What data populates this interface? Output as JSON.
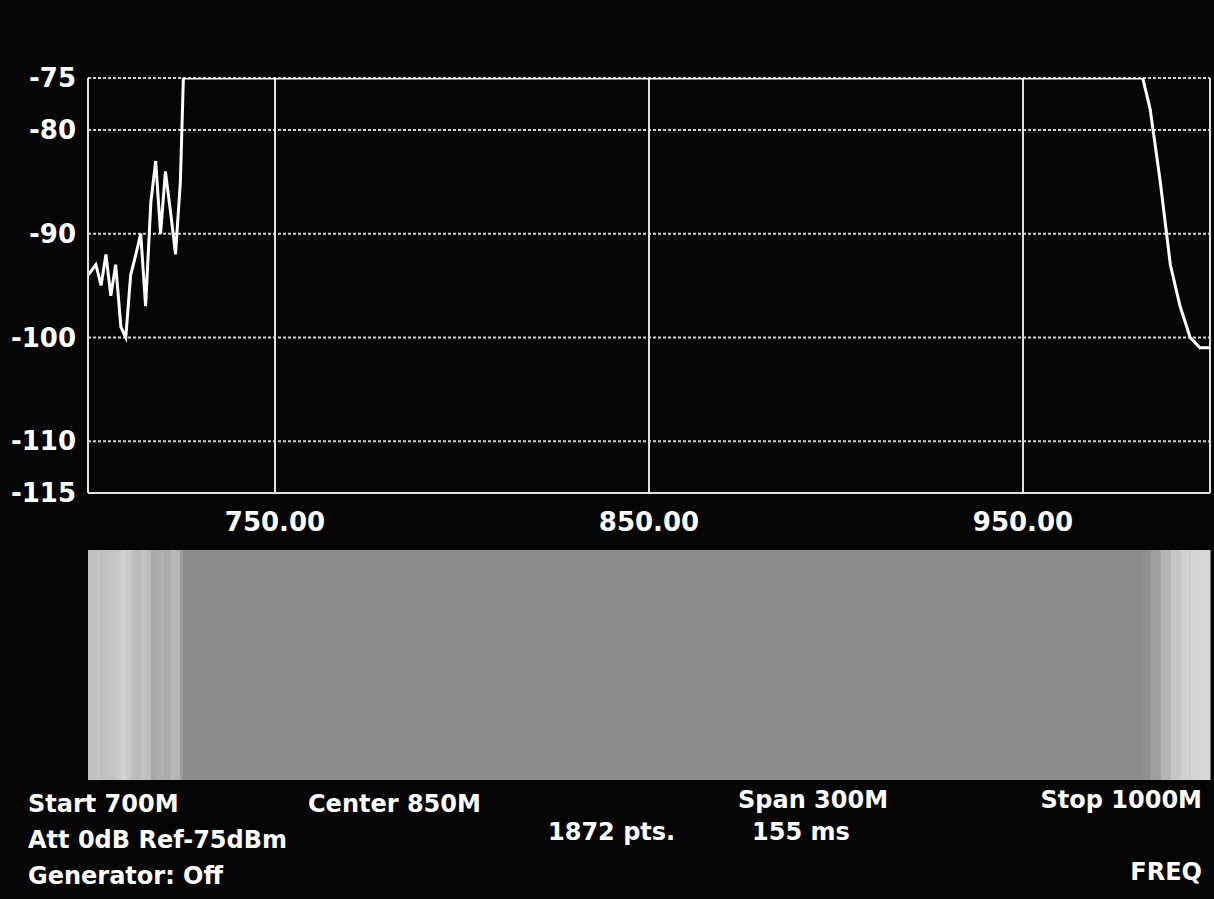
{
  "chart_data": {
    "type": "line",
    "color": "#ffffff",
    "grid": true,
    "x": [
      700,
      702.1,
      703.5,
      704.8,
      706.1,
      707.4,
      708.8,
      710.1,
      711.4,
      712.8,
      714.1,
      715.4,
      716.8,
      718.1,
      719.4,
      720.7,
      722.1,
      723.4,
      724.7,
      725.5,
      750,
      800,
      850,
      900,
      950,
      982,
      984,
      986.7,
      989.4,
      992,
      994.7,
      997.3,
      1000
    ],
    "values": [
      -94,
      -93,
      -95,
      -92,
      -96,
      -93,
      -99,
      -100,
      -94,
      -92,
      -90,
      -97,
      -87,
      -83,
      -90,
      -84,
      -88,
      -92,
      -85,
      -75,
      -75,
      -75,
      -75,
      -75,
      -75,
      -75,
      -78,
      -85,
      -93,
      -97,
      -100,
      -101,
      -101
    ],
    "xlim": [
      700,
      1000
    ],
    "ylim": [
      -115,
      -75
    ],
    "xticks": [
      {
        "value": 750,
        "label": "750.00"
      },
      {
        "value": 850,
        "label": "850.00"
      },
      {
        "value": 950,
        "label": "950.00"
      }
    ],
    "yticks": [
      -115,
      -110,
      -100,
      -90,
      -80,
      -75
    ],
    "annotations": [
      "Start 700M",
      "Center 850M",
      "Span 300M",
      "Stop 1000M",
      "Att 0dB Ref-75dBm",
      "1872 pts.",
      "155 ms",
      "Generator: Off",
      "FREQ"
    ]
  }
}
